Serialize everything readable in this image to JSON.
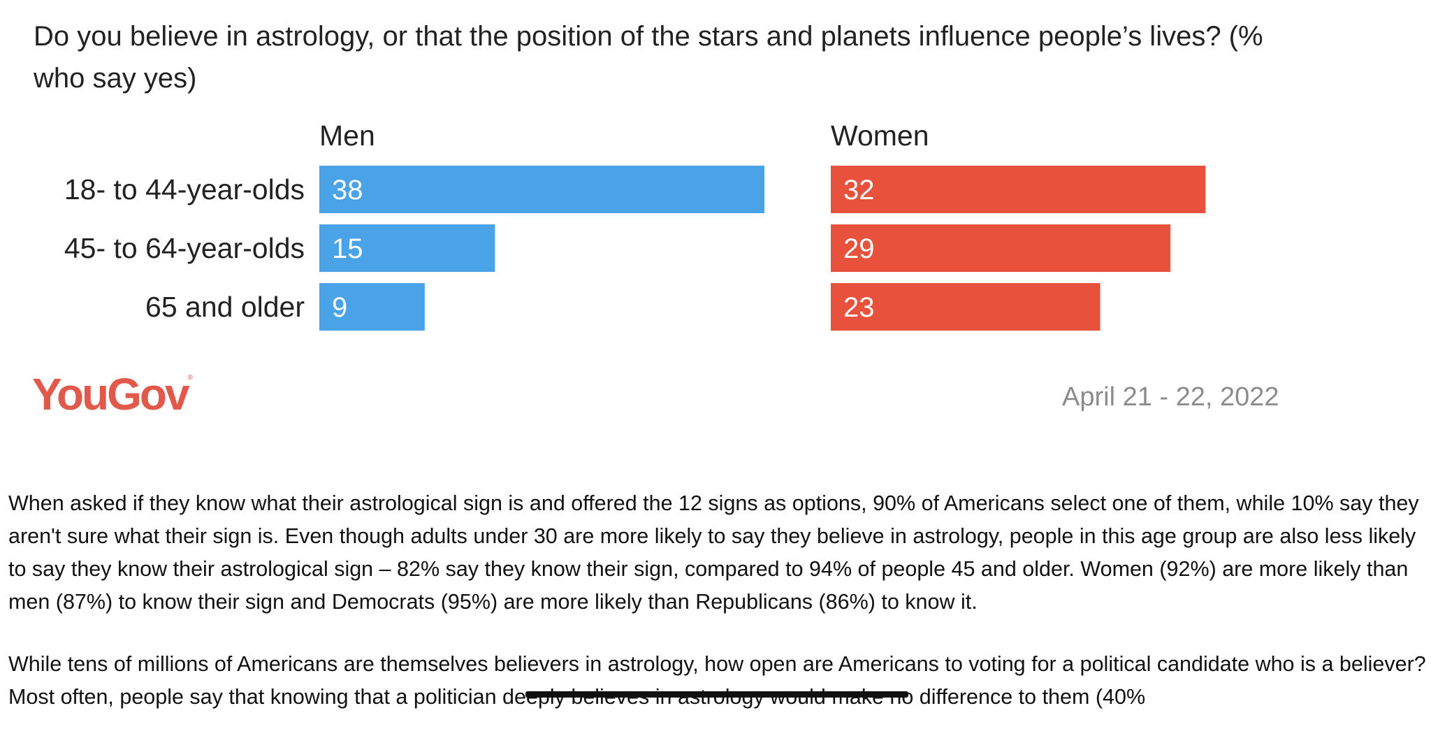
{
  "chart_data": {
    "type": "bar",
    "title": "Do you believe in astrology, or that the position of the stars and planets influence people’s lives? (% who say yes)",
    "categories": [
      "18- to 44-year-olds",
      "45- to 64-year-olds",
      "65 and older"
    ],
    "series": [
      {
        "name": "Men",
        "values": [
          38,
          15,
          9
        ],
        "color": "#4aa3e6"
      },
      {
        "name": "Women",
        "values": [
          32,
          29,
          23
        ],
        "color": "#e8523c"
      }
    ],
    "xlim": [
      0,
      40
    ],
    "grid": false,
    "orientation": "horizontal",
    "source": "YouGov",
    "date": "April 21 - 22, 2022"
  },
  "logo": {
    "text": "YouGov",
    "mark": "®"
  },
  "article": {
    "paragraph1": "When asked if they know what their astrological sign is and offered the 12 signs as options, 90% of Americans select one of them, while 10% say they aren't sure what their sign is. Even though adults under 30 are more likely to say they believe in astrology, people in this age group are also less likely to say they know their astrological sign – 82% say they know their sign, compared to 94% of people 45 and older. Women (92%) are more likely than men (87%) to know their sign and Democrats (95%) are more likely than Republicans (86%) to know it.",
    "paragraph2": "While tens of millions of Americans are themselves believers in astrology, how open are Americans to voting for a political candidate who is a believer? Most often, people say that knowing that a politician deeply believes in astrology would make no difference to them (40%"
  }
}
